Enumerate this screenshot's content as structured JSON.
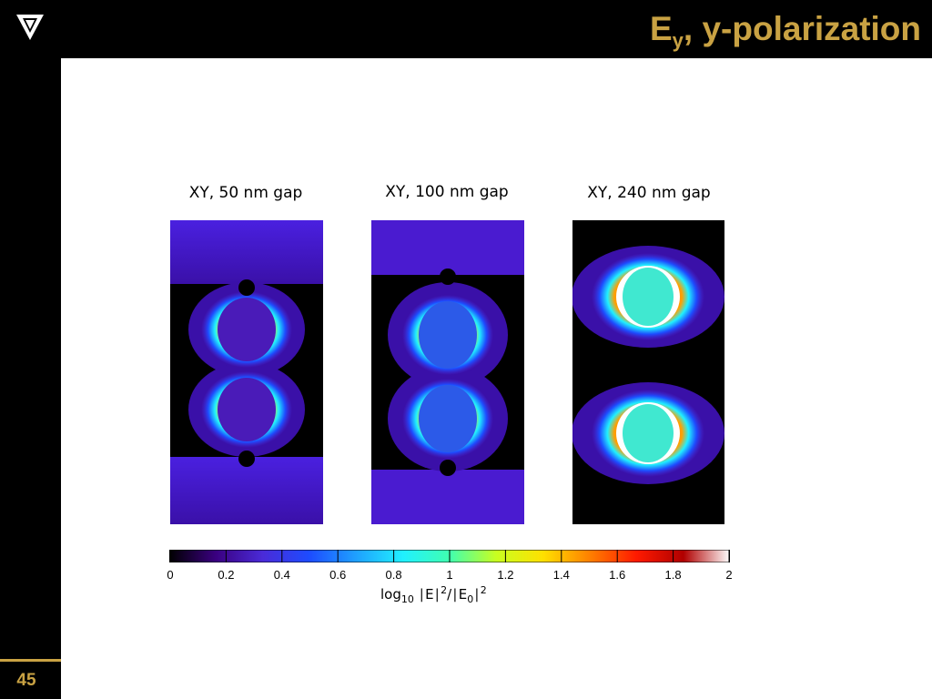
{
  "header": {
    "title_main": "E",
    "title_sub": "y",
    "title_rest": ", y-polarization",
    "logo_icon": "vanderbilt-v-logo-icon",
    "accent_color": "#c9a243"
  },
  "footer": {
    "page_number": "45"
  },
  "panels": [
    {
      "label": "XY, 50 nm gap"
    },
    {
      "label": "XY, 100 nm gap"
    },
    {
      "label": "XY, 240 nm gap"
    }
  ],
  "colorbar": {
    "ticks": [
      "0",
      "0.2",
      "0.4",
      "0.6",
      "0.8",
      "1",
      "1.2",
      "1.4",
      "1.6",
      "1.8",
      "2"
    ],
    "label_log": "log",
    "label_log_sub": "10",
    "label_e": "E",
    "label_exp": "2",
    "label_slash": "/",
    "label_e0": "E",
    "label_e0_sub": "0",
    "label_exp2": "2",
    "colors": [
      "#000000",
      "#3a0080",
      "#4a2bd8",
      "#1d4cff",
      "#1fa0ff",
      "#20f0ff",
      "#40ffb0",
      "#c8ff20",
      "#ffe000",
      "#ff8000",
      "#ff1a00",
      "#b00000",
      "#ffffff"
    ]
  }
}
